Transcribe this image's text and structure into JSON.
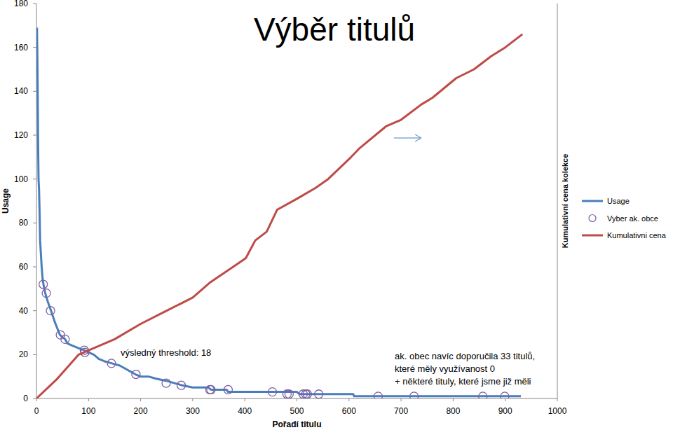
{
  "chart_data": {
    "type": "line",
    "title": "Výběr titulů",
    "x_label": "Pořadí titulu",
    "y_label": "Usage",
    "y2_label": "Kumulativní cena kolekce",
    "xlim": [
      0,
      1000
    ],
    "xticks": [
      0,
      100,
      200,
      300,
      400,
      500,
      600,
      700,
      800,
      900,
      1000
    ],
    "ylim": [
      0,
      180
    ],
    "yticks": [
      0,
      20,
      40,
      60,
      80,
      100,
      120,
      140,
      160,
      180
    ],
    "y2lim": [
      0,
      180
    ],
    "y2ticks": [],
    "grid": false,
    "legend": "right",
    "annotations": [
      [
        "výsledný threshold: 18"
      ],
      [
        "ak. obec navíc doporučila 33 titulů,",
        "které měly využívanost 0",
        "+ některé tituly, které jsme již měli"
      ]
    ],
    "series": [
      {
        "name": "Usage",
        "type": "line",
        "color": "#4a7ebb",
        "x": [
          1,
          2,
          3,
          4,
          5,
          6,
          7,
          8,
          9,
          10,
          12,
          15,
          18,
          22,
          28,
          35,
          40,
          45,
          50,
          55,
          60,
          70,
          80,
          92,
          100,
          110,
          120,
          130,
          145,
          160,
          175,
          190,
          200,
          215,
          230,
          250,
          265,
          280,
          300,
          330,
          335,
          365,
          368,
          500,
          505,
          608,
          610,
          930
        ],
        "values": [
          169,
          150,
          120,
          100,
          95,
          85,
          72,
          68,
          64,
          60,
          54,
          50,
          47,
          44,
          40,
          35,
          32,
          29,
          28,
          27,
          25,
          24,
          23,
          22,
          21,
          20,
          18,
          17,
          16,
          15,
          13,
          11,
          10,
          10,
          9,
          8,
          7,
          6,
          5,
          5,
          4,
          4,
          3,
          3,
          2,
          2,
          1,
          1
        ]
      },
      {
        "name": "Vyber ak. obce",
        "type": "scatter",
        "marker": "circle",
        "color": "#7e5ea0",
        "x": [
          13,
          19,
          27,
          46,
          55,
          92,
          93,
          144,
          191,
          249,
          278,
          333,
          335,
          368,
          453,
          481,
          485,
          512,
          517,
          520,
          542,
          656,
          725,
          857,
          899
        ],
        "values": [
          52,
          48,
          40,
          29,
          27,
          22,
          21,
          16,
          11,
          7,
          6,
          4,
          4,
          4,
          3,
          2,
          2,
          2,
          2,
          2,
          2,
          1,
          1,
          1,
          1
        ]
      },
      {
        "name": "Kumulativni cena",
        "type": "line",
        "color": "#be4b48",
        "axis": "y2",
        "x": [
          0,
          40,
          81,
          150,
          200,
          250,
          300,
          334,
          390,
          402,
          420,
          442,
          462,
          500,
          536,
          560,
          604,
          620,
          671,
          700,
          739,
          760,
          806,
          840,
          873,
          900,
          933
        ],
        "values": [
          0,
          9,
          20,
          27,
          34,
          40,
          46,
          53,
          62,
          64,
          72,
          76,
          86,
          91,
          96,
          100,
          110,
          114,
          124,
          127,
          134,
          137,
          146,
          150,
          156,
          160,
          166
        ]
      }
    ]
  }
}
